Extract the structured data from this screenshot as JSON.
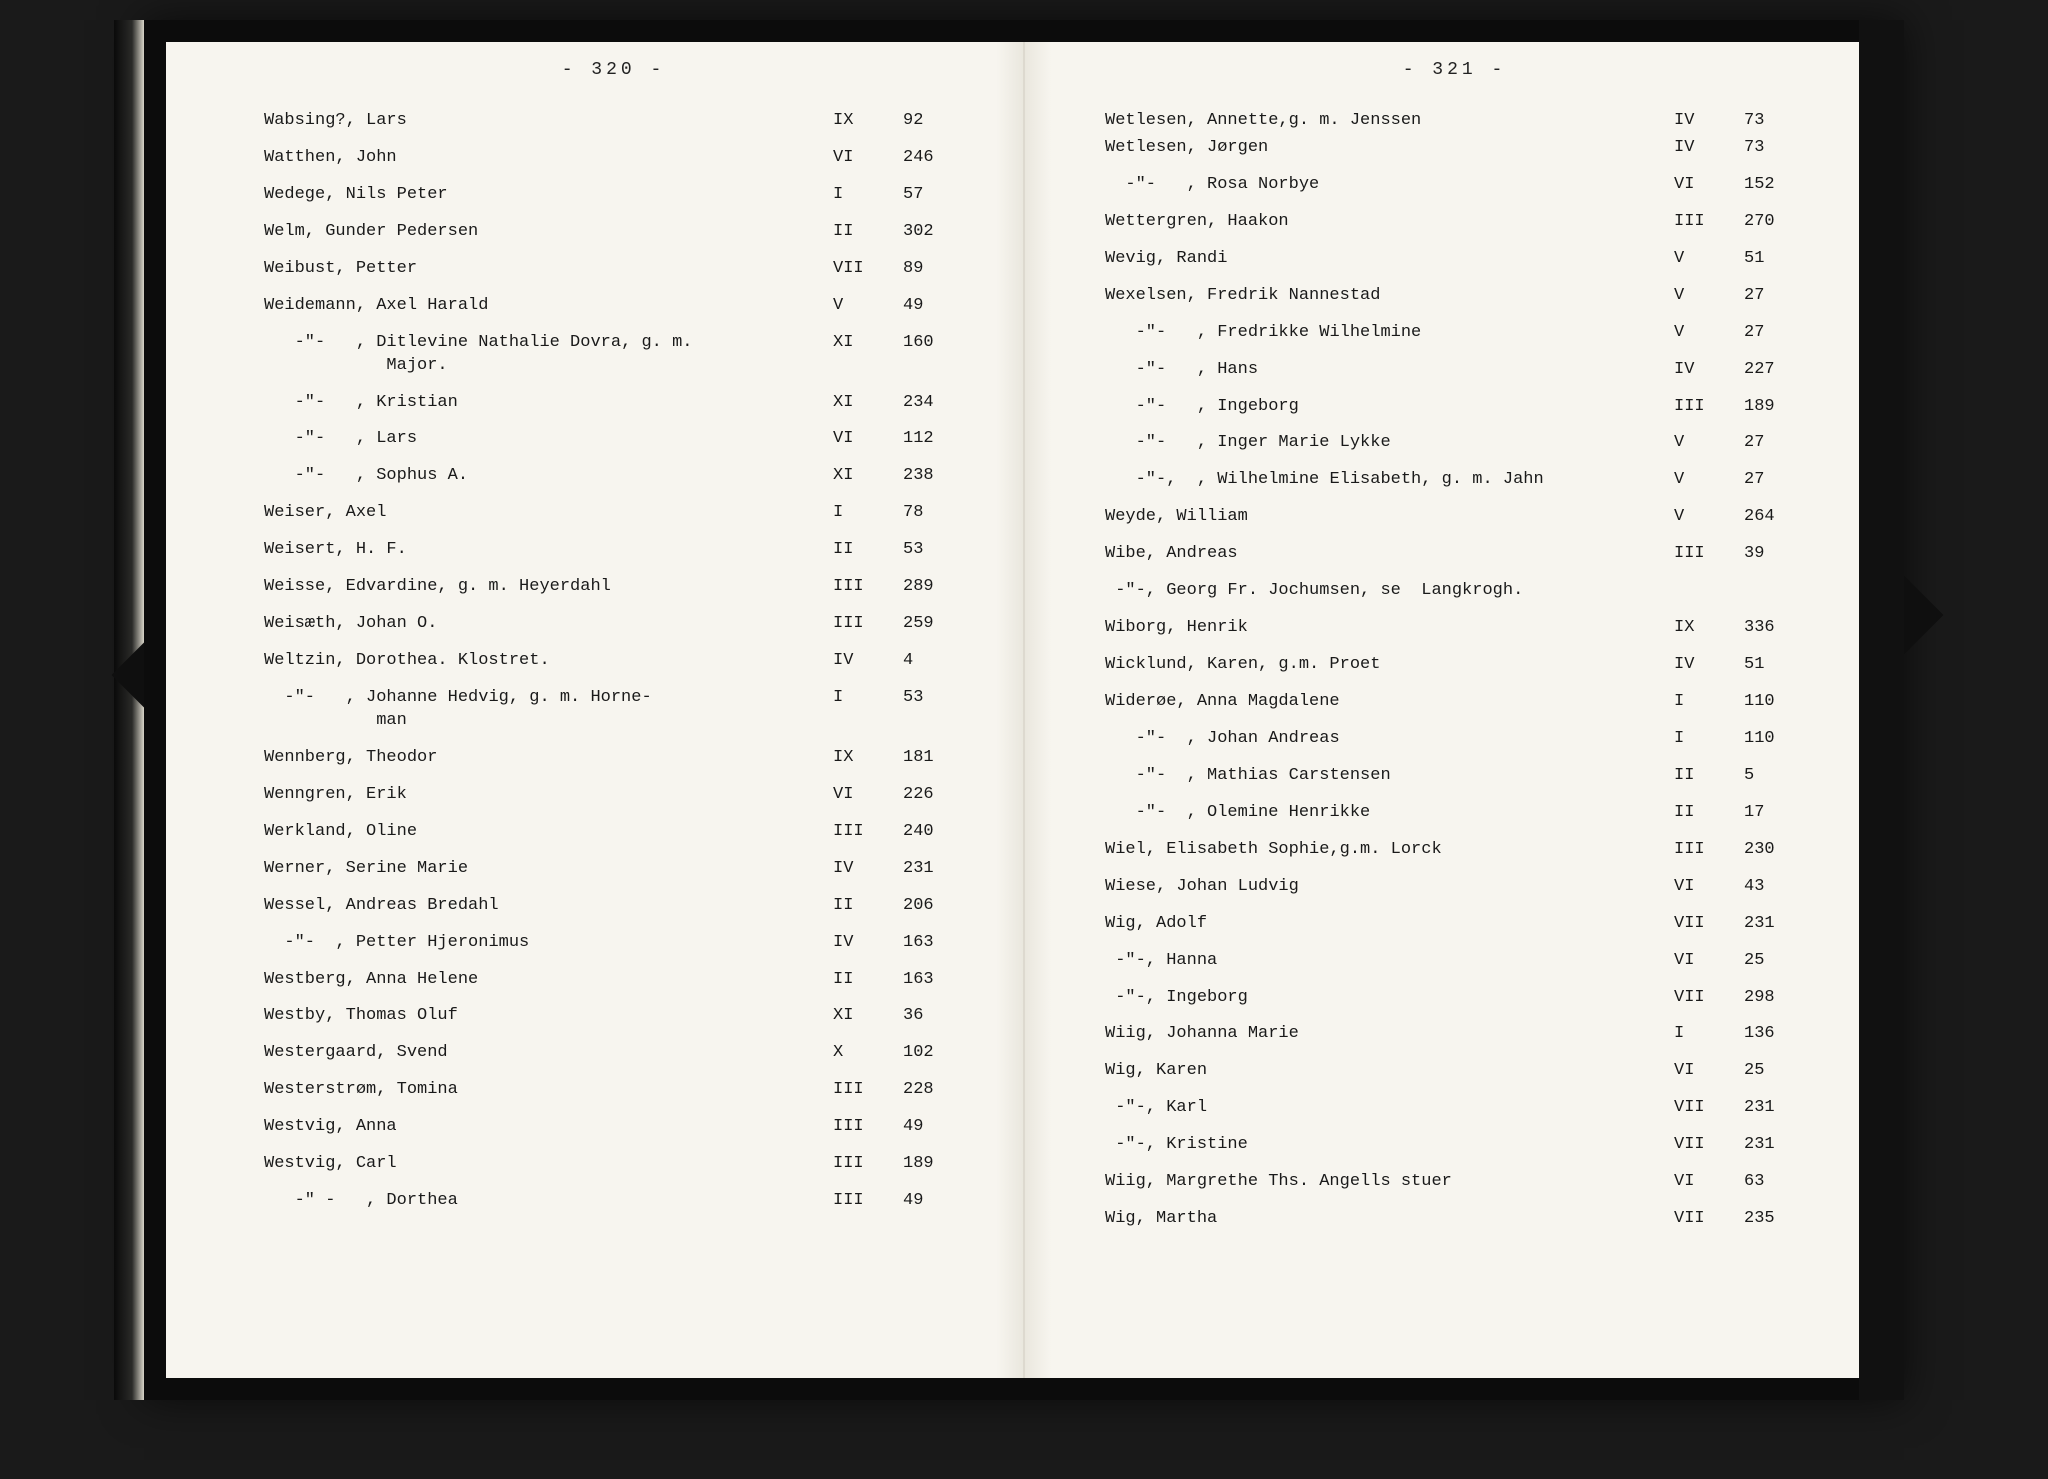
{
  "left": {
    "pageNumber": "-   320   -",
    "entries": [
      {
        "name": "Wabsing?, Lars",
        "vol": "IX",
        "pg": "92"
      },
      {
        "name": "Watthen, John",
        "vol": "VI",
        "pg": "246"
      },
      {
        "name": "Wedege, Nils Peter",
        "vol": "I",
        "pg": "57"
      },
      {
        "name": "Welm, Gunder Pedersen",
        "vol": "II",
        "pg": "302"
      },
      {
        "name": "Weibust, Petter",
        "vol": "VII",
        "pg": "89"
      },
      {
        "name": "Weidemann, Axel Harald",
        "vol": "V",
        "pg": "49"
      },
      {
        "name": "   -\"-   , Ditlevine Nathalie Dovra, g. m.\n            Major.",
        "vol": "XI",
        "pg": "160"
      },
      {
        "name": "   -\"-   , Kristian",
        "vol": "XI",
        "pg": "234"
      },
      {
        "name": "   -\"-   , Lars",
        "vol": "VI",
        "pg": "112"
      },
      {
        "name": "   -\"-   , Sophus A.",
        "vol": "XI",
        "pg": "238"
      },
      {
        "name": "Weiser, Axel",
        "vol": "I",
        "pg": "78"
      },
      {
        "name": "Weisert, H. F.",
        "vol": "II",
        "pg": "53"
      },
      {
        "name": "Weisse, Edvardine, g. m. Heyerdahl",
        "vol": "III",
        "pg": "289"
      },
      {
        "name": "Weisæth, Johan O.",
        "vol": "III",
        "pg": "259"
      },
      {
        "name": "Weltzin, Dorothea. Klostret.",
        "vol": "IV",
        "pg": "4"
      },
      {
        "name": "  -\"-   , Johanne Hedvig, g. m. Horne-\n           man",
        "vol": "I",
        "pg": "53"
      },
      {
        "name": "Wennberg, Theodor",
        "vol": "IX",
        "pg": "181"
      },
      {
        "name": "Wenngren, Erik",
        "vol": "VI",
        "pg": "226"
      },
      {
        "name": "Werkland, Oline",
        "vol": "III",
        "pg": "240"
      },
      {
        "name": "Werner, Serine Marie",
        "vol": "IV",
        "pg": "231"
      },
      {
        "name": "Wessel, Andreas Bredahl",
        "vol": "II",
        "pg": "206"
      },
      {
        "name": "  -\"-  , Petter Hjeronimus",
        "vol": "IV",
        "pg": "163"
      },
      {
        "name": "Westberg, Anna Helene",
        "vol": "II",
        "pg": "163"
      },
      {
        "name": "Westby, Thomas Oluf",
        "vol": "XI",
        "pg": "36"
      },
      {
        "name": "Westergaard, Svend",
        "vol": "X",
        "pg": "102"
      },
      {
        "name": "Westerstrøm, Tomina",
        "vol": "III",
        "pg": "228"
      },
      {
        "name": "Westvig, Anna",
        "vol": "III",
        "pg": "49"
      },
      {
        "name": "Westvig, Carl",
        "vol": "III",
        "pg": "189"
      },
      {
        "name": "   -\" -   , Dorthea",
        "vol": "III",
        "pg": "49"
      }
    ]
  },
  "right": {
    "pageNumber": "-   321   -",
    "entries": [
      {
        "name": "Wetlesen, Annette,g. m. Jenssen",
        "vol": "IV",
        "pg": "73",
        "tight": true
      },
      {
        "name": "Wetlesen, Jørgen",
        "vol": "IV",
        "pg": "73"
      },
      {
        "name": "  -\"-   , Rosa Norbye",
        "vol": "VI",
        "pg": "152"
      },
      {
        "name": "Wettergren, Haakon",
        "vol": "III",
        "pg": "270"
      },
      {
        "name": "Wevig, Randi",
        "vol": "V",
        "pg": "51"
      },
      {
        "name": "Wexelsen, Fredrik Nannestad",
        "vol": "V",
        "pg": "27"
      },
      {
        "name": "   -\"-   , Fredrikke Wilhelmine",
        "vol": "V",
        "pg": "27"
      },
      {
        "name": "   -\"-   , Hans",
        "vol": "IV",
        "pg": "227"
      },
      {
        "name": "   -\"-   , Ingeborg",
        "vol": "III",
        "pg": "189"
      },
      {
        "name": "   -\"-   , Inger Marie Lykke",
        "vol": "V",
        "pg": "27"
      },
      {
        "name": "   -\"-,  , Wilhelmine Elisabeth, g. m. Jahn",
        "vol": "V",
        "pg": "27"
      },
      {
        "name": "Weyde, William",
        "vol": "V",
        "pg": "264"
      },
      {
        "name": "Wibe, Andreas",
        "vol": "III",
        "pg": "39"
      },
      {
        "name": " -\"-, Georg Fr. Jochumsen, se  Langkrogh.",
        "vol": "",
        "pg": ""
      },
      {
        "name": "Wiborg, Henrik",
        "vol": "IX",
        "pg": "336"
      },
      {
        "name": "Wicklund, Karen, g.m. Proet",
        "vol": "IV",
        "pg": "51"
      },
      {
        "name": "Widerøe, Anna Magdalene",
        "vol": "I",
        "pg": "110"
      },
      {
        "name": "   -\"-  , Johan Andreas",
        "vol": "I",
        "pg": "110"
      },
      {
        "name": "   -\"-  , Mathias Carstensen",
        "vol": "II",
        "pg": "5"
      },
      {
        "name": "   -\"-  , Olemine Henrikke",
        "vol": "II",
        "pg": "17"
      },
      {
        "name": "Wiel, Elisabeth Sophie,g.m. Lorck",
        "vol": "III",
        "pg": "230"
      },
      {
        "name": "Wiese, Johan Ludvig",
        "vol": "VI",
        "pg": "43"
      },
      {
        "name": "Wig, Adolf",
        "vol": "VII",
        "pg": "231"
      },
      {
        "name": " -\"-, Hanna",
        "vol": "VI",
        "pg": "25"
      },
      {
        "name": " -\"-, Ingeborg",
        "vol": "VII",
        "pg": "298"
      },
      {
        "name": "Wiig, Johanna Marie",
        "vol": "I",
        "pg": "136"
      },
      {
        "name": "Wig, Karen",
        "vol": "VI",
        "pg": "25"
      },
      {
        "name": " -\"-, Karl",
        "vol": "VII",
        "pg": "231"
      },
      {
        "name": " -\"-, Kristine",
        "vol": "VII",
        "pg": "231"
      },
      {
        "name": "Wiig, Margrethe Ths. Angells stuer",
        "vol": "VI",
        "pg": "63"
      },
      {
        "name": "Wig, Martha",
        "vol": "VII",
        "pg": "235"
      }
    ]
  }
}
